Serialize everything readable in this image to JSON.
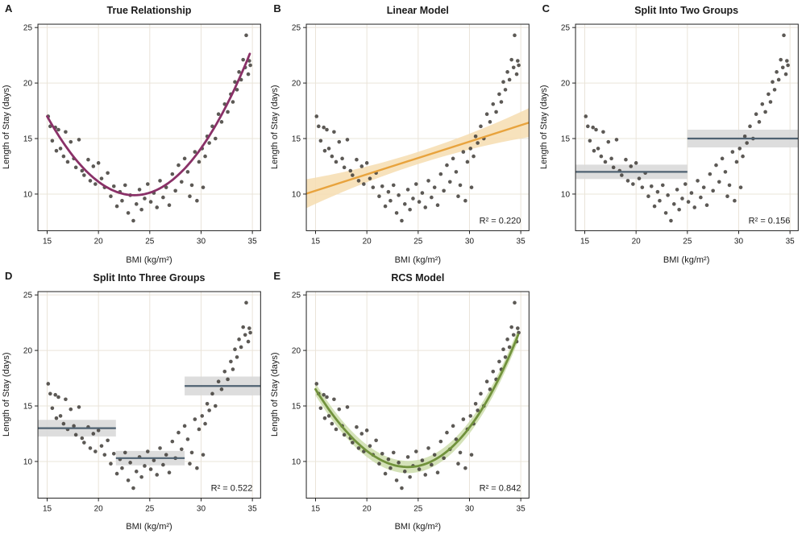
{
  "figure": {
    "xlabel": "BMI (kg/m²)",
    "ylabel": "Length of Stay (days)",
    "x_ticks": [
      15,
      20,
      25,
      30,
      35
    ],
    "y_ticks": [
      10,
      15,
      20,
      25
    ],
    "x_range": [
      14.1,
      35.8
    ],
    "y_range": [
      6.7,
      25.3
    ],
    "colors": {
      "background": "#ffffff",
      "grid": "#eae4d9",
      "border": "#222222",
      "point": "#403c37",
      "text": "#1a1a1a"
    }
  },
  "points": [
    [
      15.1,
      17.0
    ],
    [
      15.3,
      16.1
    ],
    [
      15.5,
      14.8
    ],
    [
      15.8,
      16.0
    ],
    [
      15.9,
      13.9
    ],
    [
      16.1,
      15.8
    ],
    [
      16.3,
      14.1
    ],
    [
      16.6,
      13.4
    ],
    [
      16.8,
      15.6
    ],
    [
      17.0,
      12.9
    ],
    [
      17.3,
      14.7
    ],
    [
      17.6,
      13.2
    ],
    [
      17.8,
      12.4
    ],
    [
      18.1,
      14.9
    ],
    [
      18.4,
      12.1
    ],
    [
      18.6,
      11.7
    ],
    [
      19.0,
      13.1
    ],
    [
      19.2,
      11.2
    ],
    [
      19.5,
      12.5
    ],
    [
      19.7,
      10.9
    ],
    [
      20.0,
      12.8
    ],
    [
      20.3,
      11.4
    ],
    [
      20.6,
      10.6
    ],
    [
      20.9,
      11.9
    ],
    [
      21.2,
      9.8
    ],
    [
      21.5,
      10.7
    ],
    [
      21.8,
      8.9
    ],
    [
      22.1,
      10.2
    ],
    [
      22.3,
      9.4
    ],
    [
      22.6,
      10.8
    ],
    [
      22.9,
      8.3
    ],
    [
      23.1,
      9.9
    ],
    [
      23.4,
      7.6
    ],
    [
      23.7,
      9.1
    ],
    [
      24.0,
      10.4
    ],
    [
      24.2,
      8.6
    ],
    [
      24.5,
      9.6
    ],
    [
      24.8,
      10.9
    ],
    [
      25.1,
      9.3
    ],
    [
      25.4,
      10.1
    ],
    [
      25.7,
      8.8
    ],
    [
      26.0,
      11.2
    ],
    [
      26.3,
      9.7
    ],
    [
      26.6,
      10.6
    ],
    [
      26.9,
      9.0
    ],
    [
      27.2,
      11.8
    ],
    [
      27.5,
      10.3
    ],
    [
      27.8,
      12.6
    ],
    [
      28.1,
      11.1
    ],
    [
      28.4,
      13.2
    ],
    [
      28.7,
      12.0
    ],
    [
      28.9,
      9.8
    ],
    [
      29.1,
      10.8
    ],
    [
      29.4,
      13.8
    ],
    [
      29.6,
      9.4
    ],
    [
      29.8,
      12.9
    ],
    [
      30.1,
      14.1
    ],
    [
      30.2,
      10.6
    ],
    [
      30.4,
      13.4
    ],
    [
      30.6,
      15.2
    ],
    [
      30.8,
      14.6
    ],
    [
      31.1,
      16.1
    ],
    [
      31.4,
      15.0
    ],
    [
      31.7,
      17.2
    ],
    [
      32.0,
      16.5
    ],
    [
      32.3,
      18.1
    ],
    [
      32.6,
      17.4
    ],
    [
      32.9,
      19.0
    ],
    [
      33.1,
      18.3
    ],
    [
      33.3,
      20.1
    ],
    [
      33.5,
      19.4
    ],
    [
      33.7,
      21.0
    ],
    [
      33.9,
      20.3
    ],
    [
      34.1,
      22.1
    ],
    [
      34.3,
      21.4
    ],
    [
      34.4,
      24.3
    ],
    [
      34.6,
      20.8
    ],
    [
      34.7,
      22.0
    ],
    [
      34.8,
      21.6
    ]
  ],
  "chart_data": [
    {
      "id": "A",
      "type": "scatter",
      "title": "True Relationship",
      "color": "#8a3168",
      "band_color": null,
      "r2_label": "",
      "fit": {
        "kind": "curve",
        "x0": 15.0,
        "x1": 34.8,
        "h": 23.5,
        "k": 9.9,
        "a": 0.0993,
        "b": 0.000115,
        "half": 0
      }
    },
    {
      "id": "B",
      "type": "scatter",
      "title": "Linear Model",
      "color": "#e8a33d",
      "band_color": "#f6ddb0",
      "r2_label": "R² = 0.220",
      "fit": {
        "kind": "linear",
        "x0": 14.1,
        "x1": 35.8,
        "intercept": 5.875,
        "slope": 0.295,
        "half_mid": 0.55,
        "half_end": 1.3
      }
    },
    {
      "id": "C",
      "type": "scatter",
      "title": "Split Into Two Groups",
      "color": "#4f6272",
      "band_color": "#d9d9d9",
      "r2_label": "R² = 0.156",
      "fit": {
        "kind": "steps",
        "segments": [
          {
            "x0": 14.1,
            "x1": 25.0,
            "y": 12.0,
            "half": 0.65
          },
          {
            "x0": 25.0,
            "x1": 35.8,
            "y": 15.0,
            "half": 0.8
          }
        ]
      }
    },
    {
      "id": "D",
      "type": "scatter",
      "title": "Split Into Three Groups",
      "color": "#4f6272",
      "band_color": "#d9d9d9",
      "r2_label": "R² = 0.522",
      "fit": {
        "kind": "steps",
        "segments": [
          {
            "x0": 14.1,
            "x1": 21.7,
            "y": 13.0,
            "half": 0.75
          },
          {
            "x0": 21.7,
            "x1": 28.4,
            "y": 10.3,
            "half": 0.65
          },
          {
            "x0": 28.4,
            "x1": 35.8,
            "y": 16.8,
            "half": 0.85
          }
        ]
      }
    },
    {
      "id": "E",
      "type": "scatter",
      "title": "RCS Model",
      "color": "#71923c",
      "band_color": "#cdddab",
      "r2_label": "R² = 0.842",
      "fit": {
        "kind": "curve",
        "x0": 15.0,
        "x1": 34.8,
        "h": 24.0,
        "k": 9.5,
        "a": 0.094,
        "b": 0.000844,
        "half": 0.55
      }
    }
  ]
}
